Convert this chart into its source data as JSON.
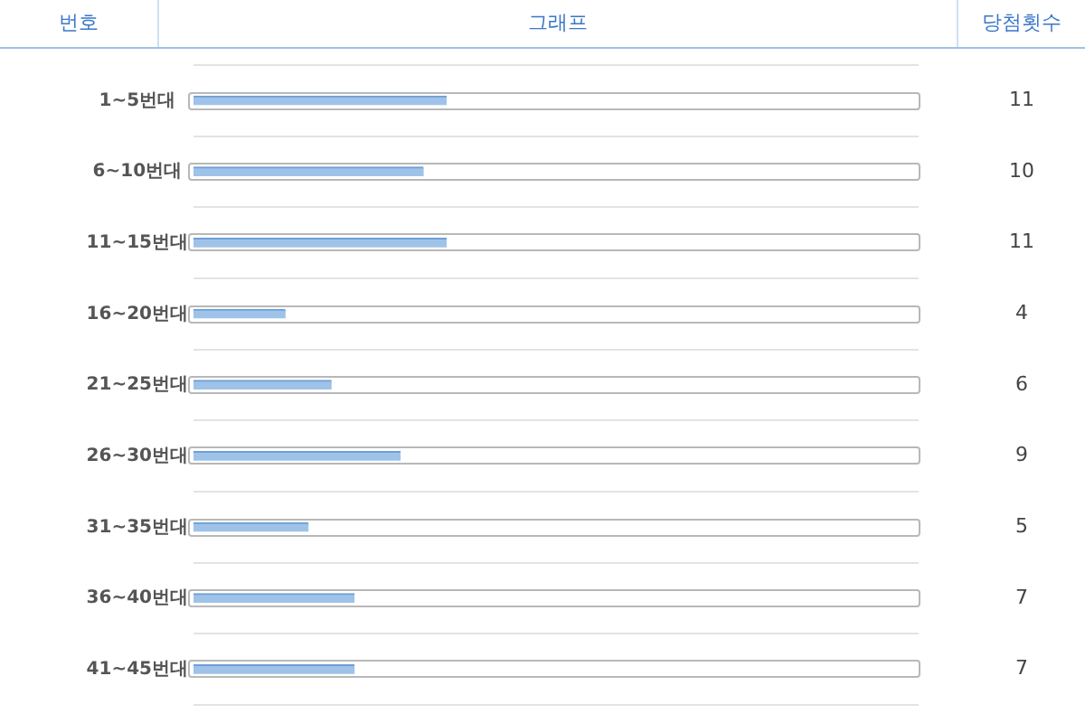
{
  "chart_data": {
    "type": "bar",
    "orientation": "horizontal",
    "ylabel": "번호",
    "xlabel": "그래프",
    "annotations": [
      "당첨횟수"
    ],
    "categories": [
      "1~5번대",
      "6~10번대",
      "11~15번대",
      "16~20번대",
      "21~25번대",
      "26~30번대",
      "31~35번대",
      "36~40번대",
      "41~45번대"
    ],
    "values": [
      11,
      10,
      11,
      4,
      6,
      9,
      5,
      7,
      7
    ],
    "color": "#9fc3e8",
    "data_labels": true,
    "grid": "y",
    "legend": false
  }
}
